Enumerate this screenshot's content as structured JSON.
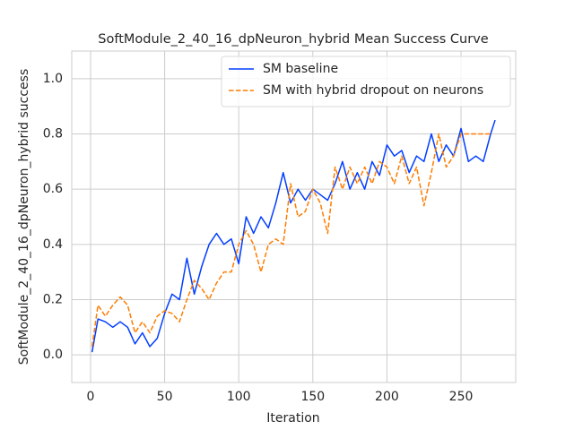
{
  "chart_data": {
    "type": "line",
    "title": "SoftModule_2_40_16_dpNeuron_hybrid Mean Success Curve",
    "xlabel": "Iteration",
    "ylabel": "SoftModule_2_40_16_dpNeuron_hybrid success",
    "x": [
      1,
      5,
      10,
      15,
      20,
      25,
      30,
      35,
      40,
      45,
      50,
      55,
      60,
      65,
      70,
      75,
      80,
      85,
      90,
      95,
      100,
      105,
      110,
      115,
      120,
      125,
      130,
      135,
      140,
      145,
      150,
      155,
      160,
      165,
      170,
      175,
      180,
      185,
      190,
      195,
      200,
      205,
      210,
      215,
      220,
      225,
      230,
      235,
      240,
      245,
      250,
      255,
      260,
      265,
      270,
      273
    ],
    "series": [
      {
        "name": "SM baseline",
        "color": "#023eff",
        "linestyle": "solid",
        "values": [
          0.01,
          0.13,
          0.12,
          0.1,
          0.12,
          0.1,
          0.04,
          0.08,
          0.03,
          0.06,
          0.15,
          0.22,
          0.2,
          0.35,
          0.22,
          0.32,
          0.4,
          0.44,
          0.4,
          0.42,
          0.33,
          0.5,
          0.44,
          0.5,
          0.46,
          0.55,
          0.66,
          0.55,
          0.6,
          0.56,
          0.6,
          0.58,
          0.56,
          0.62,
          0.7,
          0.6,
          0.66,
          0.6,
          0.7,
          0.65,
          0.76,
          0.72,
          0.74,
          0.66,
          0.72,
          0.7,
          0.8,
          0.7,
          0.76,
          0.72,
          0.82,
          0.7,
          0.72,
          0.7,
          0.8,
          0.85
        ]
      },
      {
        "name": "SM with hybrid dropout on neurons",
        "color": "#ff7c00",
        "linestyle": "dashed",
        "values": [
          0.03,
          0.18,
          0.14,
          0.18,
          0.21,
          0.18,
          0.08,
          0.12,
          0.08,
          0.14,
          0.16,
          0.15,
          0.12,
          0.2,
          0.27,
          0.24,
          0.2,
          0.26,
          0.3,
          0.3,
          0.4,
          0.45,
          0.4,
          0.3,
          0.4,
          0.42,
          0.4,
          0.62,
          0.5,
          0.52,
          0.6,
          0.55,
          0.44,
          0.68,
          0.6,
          0.68,
          0.62,
          0.68,
          0.62,
          0.7,
          0.68,
          0.62,
          0.72,
          0.62,
          0.68,
          0.54,
          0.66,
          0.8,
          0.68,
          0.72,
          0.8,
          0.8,
          0.8,
          0.8,
          0.8,
          null
        ]
      }
    ],
    "xlim": [
      -12.7,
      286.9
    ],
    "ylim": [
      -0.1,
      1.1
    ],
    "xticks": [
      0,
      50,
      100,
      150,
      200,
      250
    ],
    "yticks": [
      {
        "value": 0,
        "label": "0.0"
      },
      {
        "value": 0.2,
        "label": "0.2"
      },
      {
        "value": 0.4,
        "label": "0.4"
      },
      {
        "value": 0.6,
        "label": "0.6"
      },
      {
        "value": 0.8,
        "label": "0.8"
      },
      {
        "value": 1,
        "label": "1.0"
      }
    ],
    "grid": true,
    "legend": "upper right"
  }
}
